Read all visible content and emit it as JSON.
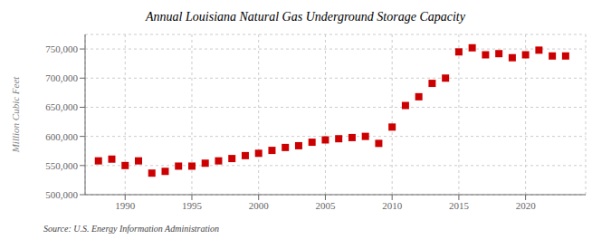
{
  "chart_data": {
    "type": "scatter",
    "title": "Annual Louisiana Natural Gas Underground Storage Capacity",
    "ylabel": "Million Cubic Feet",
    "annotations": [
      "Source: U.S. Energy Information Administration"
    ],
    "x": [
      1988,
      1989,
      1990,
      1991,
      1992,
      1993,
      1994,
      1995,
      1996,
      1997,
      1998,
      1999,
      2000,
      2001,
      2002,
      2003,
      2004,
      2005,
      2006,
      2007,
      2008,
      2009,
      2010,
      2011,
      2012,
      2013,
      2014,
      2015,
      2016,
      2017,
      2018,
      2019,
      2020,
      2021,
      2022,
      2023
    ],
    "values": [
      558000,
      561000,
      550000,
      558000,
      537000,
      540000,
      549000,
      549000,
      554000,
      558000,
      562000,
      567000,
      571000,
      576000,
      581000,
      584000,
      590000,
      594000,
      596000,
      598000,
      600000,
      588000,
      616000,
      653000,
      668000,
      691000,
      700000,
      745000,
      752000,
      740000,
      742000,
      735000,
      740000,
      748000,
      738000,
      738000
    ],
    "color": "#cc0000",
    "marker": "square",
    "xlim": [
      1987,
      2024.5
    ],
    "ylim": [
      500000,
      775000
    ],
    "xticks": [
      1990,
      1995,
      2000,
      2005,
      2010,
      2015,
      2020
    ],
    "yticks": [
      {
        "value": 500000,
        "label": "500,000"
      },
      {
        "value": 550000,
        "label": "550,000"
      },
      {
        "value": 600000,
        "label": "600,000"
      },
      {
        "value": 650000,
        "label": "650,000"
      },
      {
        "value": 700000,
        "label": "700,000"
      },
      {
        "value": 750000,
        "label": "750,000"
      }
    ],
    "grid": true
  }
}
